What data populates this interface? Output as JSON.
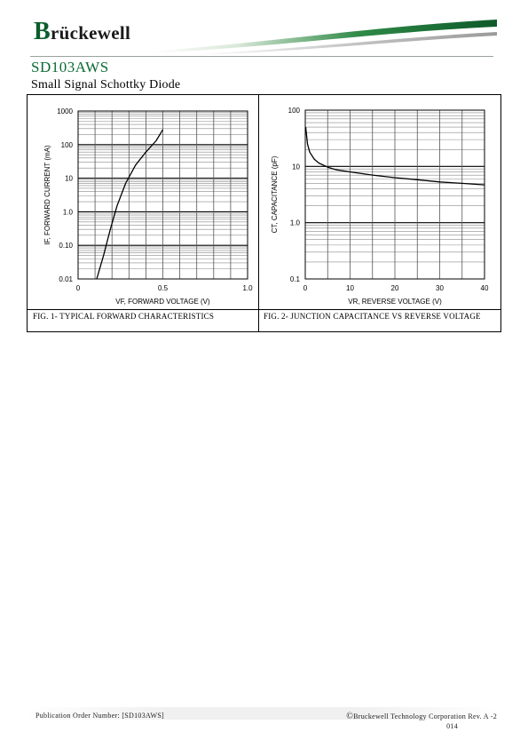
{
  "header": {
    "logo_initial": "B",
    "logo_rest": "rückewell"
  },
  "part_number": "SD103AWS",
  "subtitle": "Small Signal Schottky Diode",
  "figures": {
    "fig1_caption": "FIG. 1- TYPICAL FORWARD CHARACTERISTICS",
    "fig2_caption": "FIG. 2- JUNCTION CAPACITANCE VS REVERSE VOLTAGE"
  },
  "chart_data": [
    {
      "type": "line",
      "scale": "log-y",
      "ylabel": "IF, FORWARD CURRENT (mA)",
      "xlabel": "VF, FORWARD VOLTAGE (V)",
      "x_ticks": [
        "0",
        "0.5",
        "1.0"
      ],
      "y_ticks": [
        "0.01",
        "0.10",
        "1.0",
        "10",
        "100",
        "1000"
      ],
      "xlim": [
        0,
        1.0
      ],
      "ylim": [
        0.01,
        1000
      ],
      "grid": true,
      "series": [
        {
          "x": [
            0.11,
            0.15,
            0.19,
            0.23,
            0.28,
            0.34,
            0.4,
            0.46,
            0.5
          ],
          "y": [
            0.01,
            0.05,
            0.3,
            1.5,
            7,
            25,
            60,
            130,
            280
          ]
        }
      ]
    },
    {
      "type": "line",
      "scale": "log-y",
      "ylabel": "CT, CAPACITANCE (pF)",
      "xlabel": "VR, REVERSE VOLTAGE (V)",
      "x_ticks": [
        "0",
        "10",
        "20",
        "30",
        "40"
      ],
      "y_ticks": [
        "0.1",
        "1.0",
        "10",
        "100"
      ],
      "xlim": [
        0,
        40
      ],
      "ylim": [
        0.1,
        100
      ],
      "grid": true,
      "series": [
        {
          "x": [
            0.1,
            0.5,
            1,
            2,
            3,
            5,
            7,
            10,
            15,
            20,
            25,
            30,
            35,
            40
          ],
          "y": [
            50,
            25,
            18,
            13.5,
            11.5,
            9.7,
            8.7,
            8.0,
            7.0,
            6.3,
            5.8,
            5.3,
            5.0,
            4.7
          ]
        }
      ]
    }
  ],
  "footer": {
    "publication": "Publication Order Number: [SD103AWS]",
    "copyright_symbol": "©",
    "copyright_text": "Bruckewell Technology Corporation Rev. A -2",
    "copyright_year_tail": "014"
  }
}
